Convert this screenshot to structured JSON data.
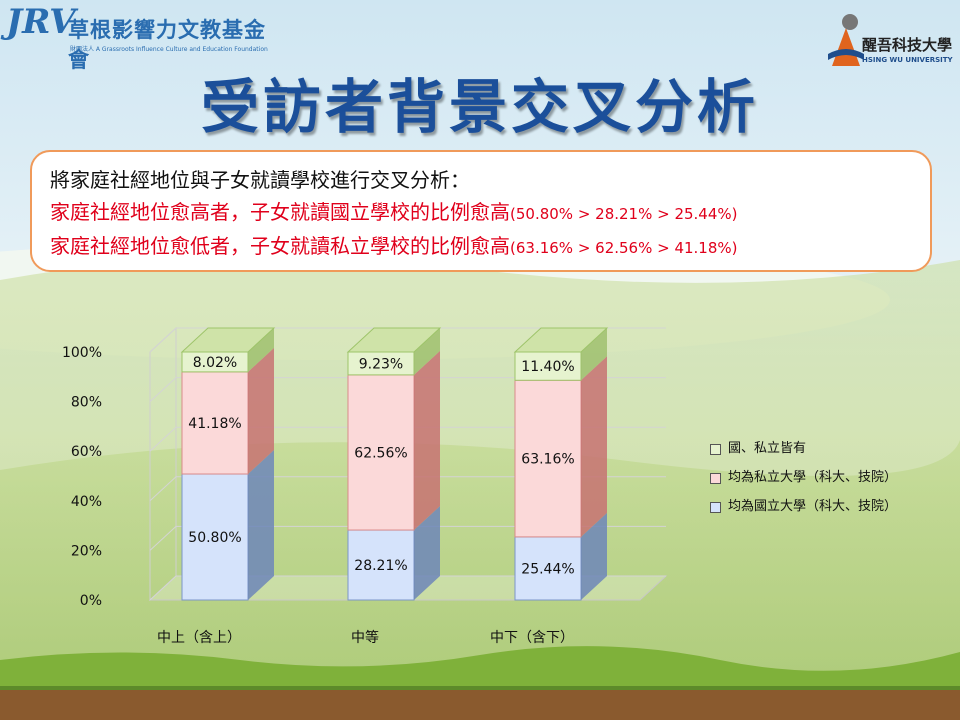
{
  "header": {
    "logo_left_mark": "JRV",
    "logo_left_name": "草根影響力文教基金會",
    "logo_left_sub": "財團法人 A Grassroots Influence Culture and Education Foundation",
    "logo_right_name": "醒吾科技大學",
    "logo_right_sub": "HSING WU UNIVERSITY"
  },
  "title": "受訪者背景交叉分析",
  "summary": {
    "line1": "將家庭社經地位與子女就讀學校進行交叉分析：",
    "line2_main": "家庭社經地位愈高者，子女就讀國立學校的比例愈高",
    "line2_detail": "(50.80% > 28.21% > 25.44%)",
    "line3_main": "家庭社經地位愈低者，子女就讀私立學校的比例愈高",
    "line3_detail": "(63.16% > 62.56% > 41.18%)"
  },
  "colors": {
    "national_front": "#d5e3fb",
    "private_front": "#fbd9d9",
    "both_front": "#e6f3cf"
  },
  "chart_data": {
    "type": "bar",
    "stacked": true,
    "percent": true,
    "categories": [
      "中上（含上）",
      "中等",
      "中下（含下）"
    ],
    "series": [
      {
        "name": "均為國立大學（科大、技院）",
        "values": [
          50.8,
          28.21,
          25.44
        ],
        "labels": [
          "50.80%",
          "28.21%",
          "25.44%"
        ]
      },
      {
        "name": "均為私立大學（科大、技院）",
        "values": [
          41.18,
          62.56,
          63.16
        ],
        "labels": [
          "41.18%",
          "62.56%",
          "63.16%"
        ]
      },
      {
        "name": "國、私立皆有",
        "values": [
          8.02,
          9.23,
          11.4
        ],
        "labels": [
          "8.02%",
          "9.23%",
          "11.40%"
        ]
      }
    ],
    "ylim": [
      0,
      100
    ],
    "yticks": [
      "0%",
      "20%",
      "40%",
      "60%",
      "80%",
      "100%"
    ],
    "legend": [
      {
        "label": "國、私立皆有",
        "color": "#e6f3cf"
      },
      {
        "label": "均為私立大學（科大、技院）",
        "color": "#fbd9d9"
      },
      {
        "label": "均為國立大學（科大、技院）",
        "color": "#d5e3fb"
      }
    ],
    "legend_position": "right"
  }
}
